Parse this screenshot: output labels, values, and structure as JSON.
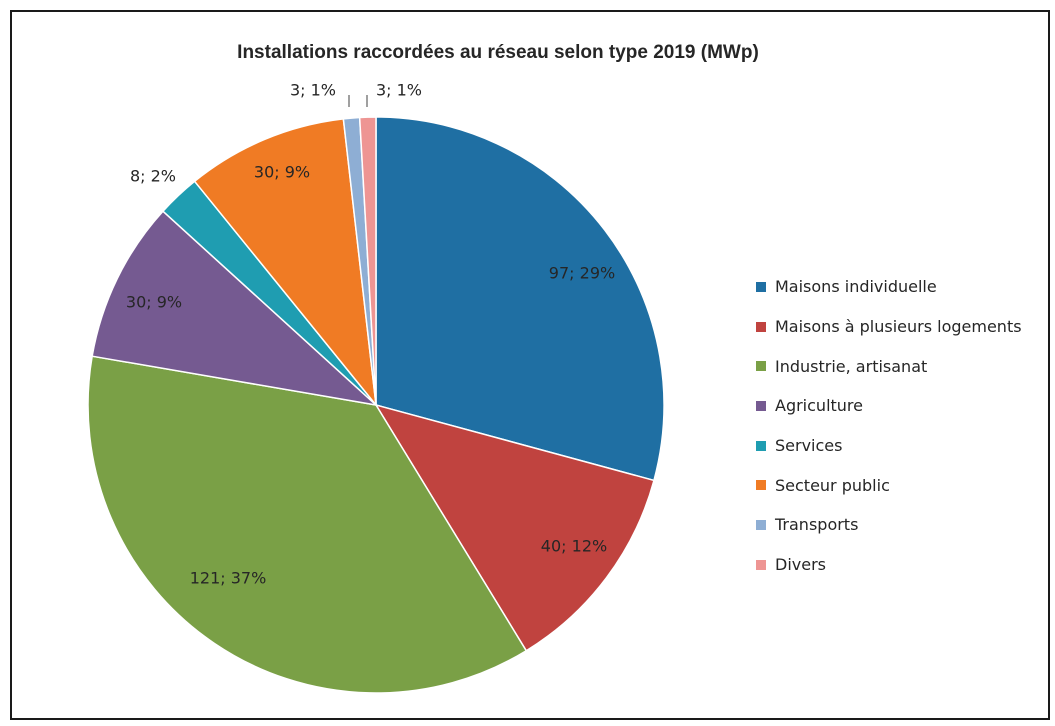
{
  "chart_data": {
    "type": "pie",
    "title": "Installations raccordées au réseau selon type 2019 (MWp)",
    "slices": [
      {
        "name": "Maisons individuelle",
        "value": 97,
        "label": "97; 29%",
        "color": "#1f6fa3"
      },
      {
        "name": "Maisons à plusieurs logements",
        "value": 40,
        "label": "40; 12%",
        "color": "#c0433f"
      },
      {
        "name": "Industrie, artisanat",
        "value": 121,
        "label": "121; 37%",
        "color": "#7aa046"
      },
      {
        "name": "Agriculture",
        "value": 30,
        "label": "30; 9%",
        "color": "#755a91"
      },
      {
        "name": "Services",
        "value": 8,
        "label": "8; 2%",
        "color": "#1f9db1"
      },
      {
        "name": "Secteur public",
        "value": 30,
        "label": "30; 9%",
        "color": "#f07b24"
      },
      {
        "name": "Transports",
        "value": 3,
        "label": "3; 1%",
        "color": "#8eaed4"
      },
      {
        "name": "Divers",
        "value": 3,
        "label": "3; 1%",
        "color": "#ee9593"
      }
    ],
    "legend_position": "right"
  }
}
